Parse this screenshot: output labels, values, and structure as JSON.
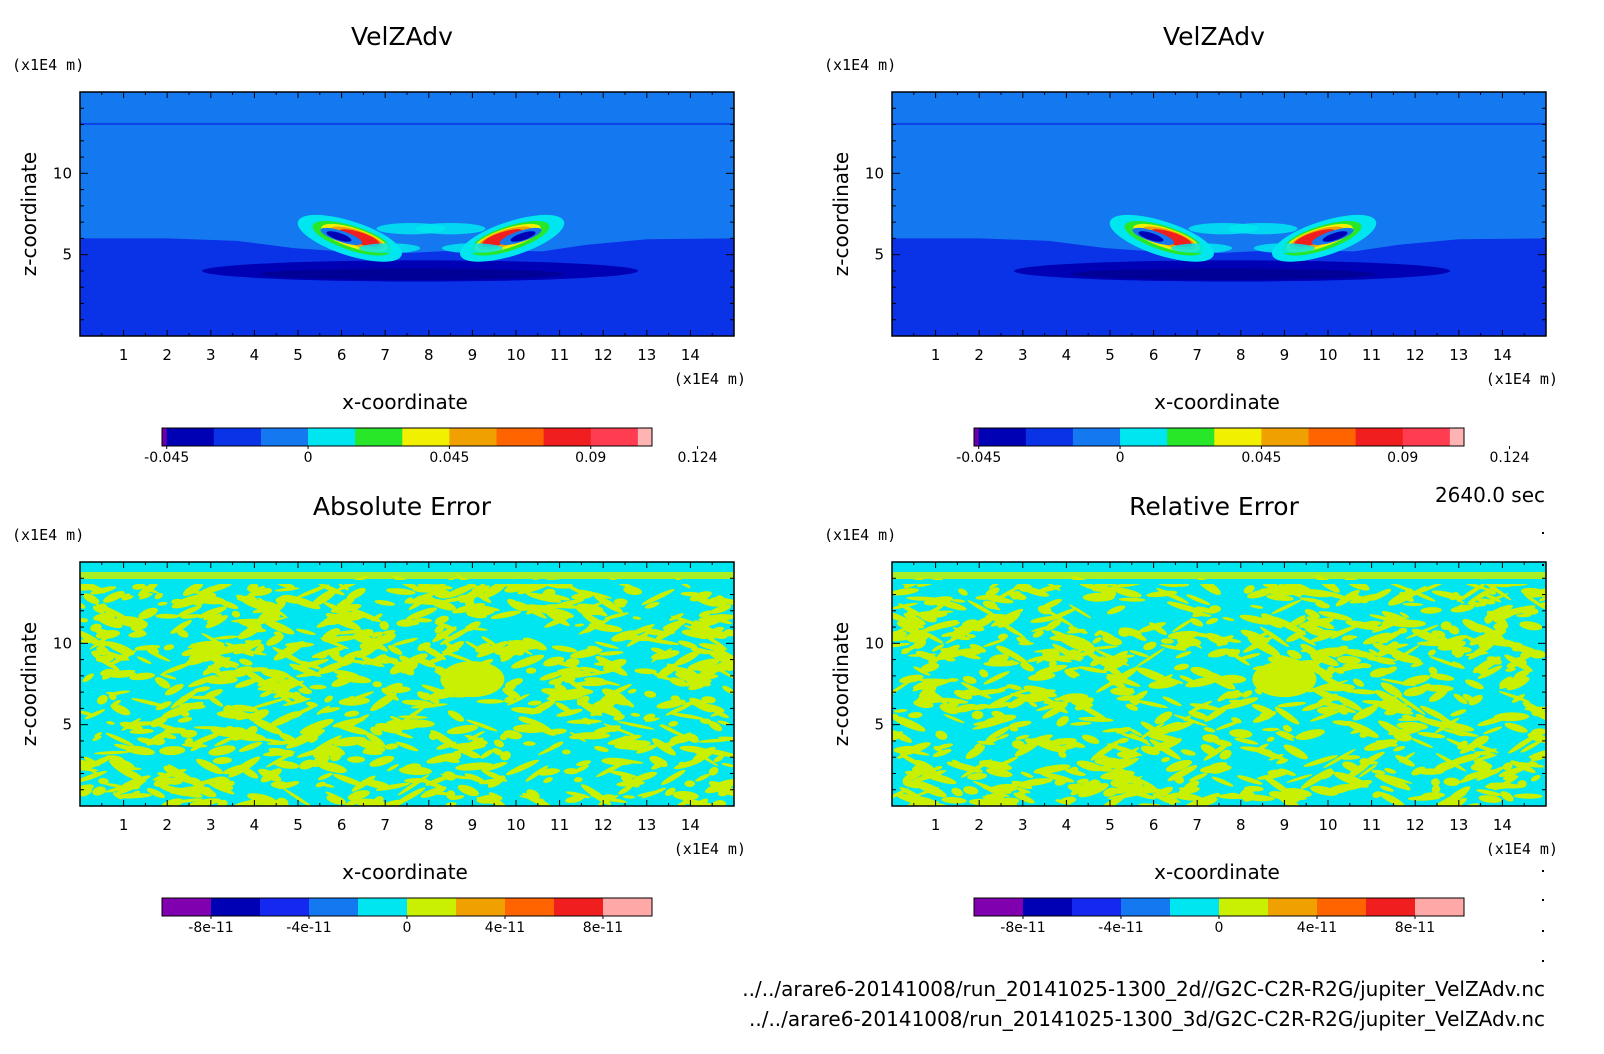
{
  "chart_data": [
    {
      "type": "contour",
      "title": "VelZAdv",
      "xlabel": "x-coordinate",
      "ylabel": "z-coordinate",
      "xunit": "(x1E4 m)",
      "yunit": "(x1E4 m)",
      "xlim": [
        0,
        15
      ],
      "ylim": [
        0,
        15
      ],
      "xticks": [
        "1",
        "2",
        "3",
        "4",
        "5",
        "6",
        "7",
        "8",
        "9",
        "10",
        "11",
        "12",
        "13",
        "14"
      ],
      "yticks": [
        "5",
        "10"
      ],
      "field": "vortex",
      "colorbar": {
        "colors": [
          "#6a00a8",
          "#0000b4",
          "#0a32e6",
          "#1478f0",
          "#00e6f0",
          "#28e628",
          "#f0f000",
          "#f0a000",
          "#ff6400",
          "#f01e1e",
          "#ff3c50",
          "#ffb4b4"
        ],
        "weights": [
          1,
          10,
          10,
          10,
          10,
          10,
          10,
          10,
          10,
          10,
          10,
          3
        ],
        "tick_values": [
          -0.045,
          0,
          0.045,
          0.09,
          0.124
        ],
        "tick_labels": [
          "-0.045",
          "0",
          "0.045",
          "0.09",
          "0.124"
        ]
      }
    },
    {
      "type": "contour",
      "title": "VelZAdv",
      "xlabel": "x-coordinate",
      "ylabel": "z-coordinate",
      "xunit": "(x1E4 m)",
      "yunit": "(x1E4 m)",
      "xlim": [
        0,
        15
      ],
      "ylim": [
        0,
        15
      ],
      "xticks": [
        "1",
        "2",
        "3",
        "4",
        "5",
        "6",
        "7",
        "8",
        "9",
        "10",
        "11",
        "12",
        "13",
        "14"
      ],
      "yticks": [
        "5",
        "10"
      ],
      "field": "vortex",
      "colorbar": {
        "colors": [
          "#6a00a8",
          "#0000b4",
          "#0a32e6",
          "#1478f0",
          "#00e6f0",
          "#28e628",
          "#f0f000",
          "#f0a000",
          "#ff6400",
          "#f01e1e",
          "#ff3c50",
          "#ffb4b4"
        ],
        "weights": [
          1,
          10,
          10,
          10,
          10,
          10,
          10,
          10,
          10,
          10,
          10,
          3
        ],
        "tick_values": [
          -0.045,
          0,
          0.045,
          0.09,
          0.124
        ],
        "tick_labels": [
          "-0.045",
          "0",
          "0.045",
          "0.09",
          "0.124"
        ]
      }
    },
    {
      "type": "contour",
      "title": "Absolute Error",
      "xlabel": "x-coordinate",
      "ylabel": "z-coordinate",
      "xunit": "(x1E4 m)",
      "yunit": "(x1E4 m)",
      "xlim": [
        0,
        15
      ],
      "ylim": [
        0,
        15
      ],
      "xticks": [
        "1",
        "2",
        "3",
        "4",
        "5",
        "6",
        "7",
        "8",
        "9",
        "10",
        "11",
        "12",
        "13",
        "14"
      ],
      "yticks": [
        "5",
        "10"
      ],
      "field": "noise",
      "colorbar": {
        "colors": [
          "#8000b0",
          "#0000b4",
          "#1428f0",
          "#1478f0",
          "#00e6f0",
          "#c8f000",
          "#f0a000",
          "#ff6400",
          "#f01e1e",
          "#ffa8a8"
        ],
        "weights": [
          1,
          1,
          1,
          1,
          1,
          1,
          1,
          1,
          1,
          1
        ],
        "tick_values": [
          -8e-11,
          -4e-11,
          0,
          4e-11,
          8e-11
        ],
        "tick_labels": [
          "-8e-11",
          "-4e-11",
          "0",
          "4e-11",
          "8e-11"
        ],
        "range": [
          -1e-10,
          1e-10
        ]
      }
    },
    {
      "type": "contour",
      "title": "Relative Error",
      "xlabel": "x-coordinate",
      "ylabel": "z-coordinate",
      "xunit": "(x1E4 m)",
      "yunit": "(x1E4 m)",
      "xlim": [
        0,
        15
      ],
      "ylim": [
        0,
        15
      ],
      "xticks": [
        "1",
        "2",
        "3",
        "4",
        "5",
        "6",
        "7",
        "8",
        "9",
        "10",
        "11",
        "12",
        "13",
        "14"
      ],
      "yticks": [
        "5",
        "10"
      ],
      "field": "noise",
      "colorbar": {
        "colors": [
          "#8000b0",
          "#0000b4",
          "#1428f0",
          "#1478f0",
          "#00e6f0",
          "#c8f000",
          "#f0a000",
          "#ff6400",
          "#f01e1e",
          "#ffa8a8"
        ],
        "weights": [
          1,
          1,
          1,
          1,
          1,
          1,
          1,
          1,
          1,
          1
        ],
        "tick_values": [
          -8e-11,
          -4e-11,
          0,
          4e-11,
          8e-11
        ],
        "tick_labels": [
          "-8e-11",
          "-4e-11",
          "0",
          "4e-11",
          "8e-11"
        ],
        "range": [
          -1e-10,
          1e-10
        ]
      }
    }
  ],
  "time_label": "2640.0 sec",
  "files": [
    "../../arare6-20141008/run_20141025-1300_2d//G2C-C2R-R2G/jupiter_VelZAdv.nc",
    "../../arare6-20141008/run_20141025-1300_3d/G2C-C2R-R2G/jupiter_VelZAdv.nc"
  ]
}
